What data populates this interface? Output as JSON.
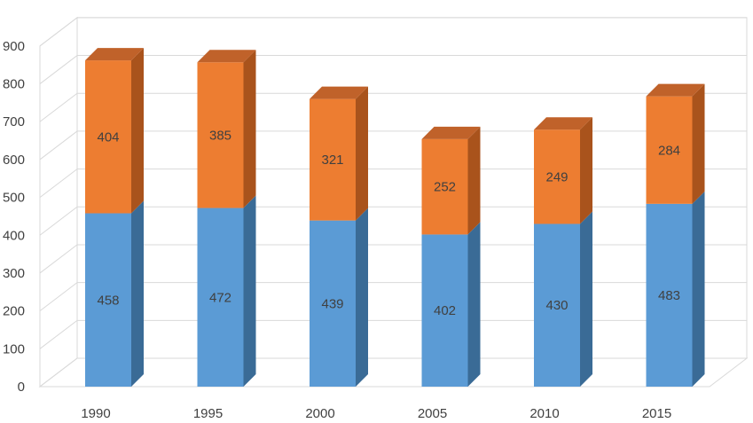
{
  "chart_data": {
    "type": "bar",
    "stacked": true,
    "three_d": true,
    "categories": [
      "1990",
      "1995",
      "2000",
      "2005",
      "2010",
      "2015"
    ],
    "series": [
      {
        "values": [
          458,
          472,
          439,
          402,
          430,
          483
        ],
        "color": "#5b9bd5",
        "side_color": "#3a6b96",
        "top_color": "#6ea6da"
      },
      {
        "values": [
          404,
          385,
          321,
          252,
          249,
          284
        ],
        "color": "#ed7d31",
        "side_color": "#a9531c",
        "top_color": "#c0622a"
      }
    ],
    "ylim": [
      0,
      900
    ],
    "yticks": [
      0,
      100,
      200,
      300,
      400,
      500,
      600,
      700,
      800,
      900
    ],
    "grid": true,
    "legend": "none",
    "title": "",
    "xlabel": "",
    "ylabel": ""
  }
}
